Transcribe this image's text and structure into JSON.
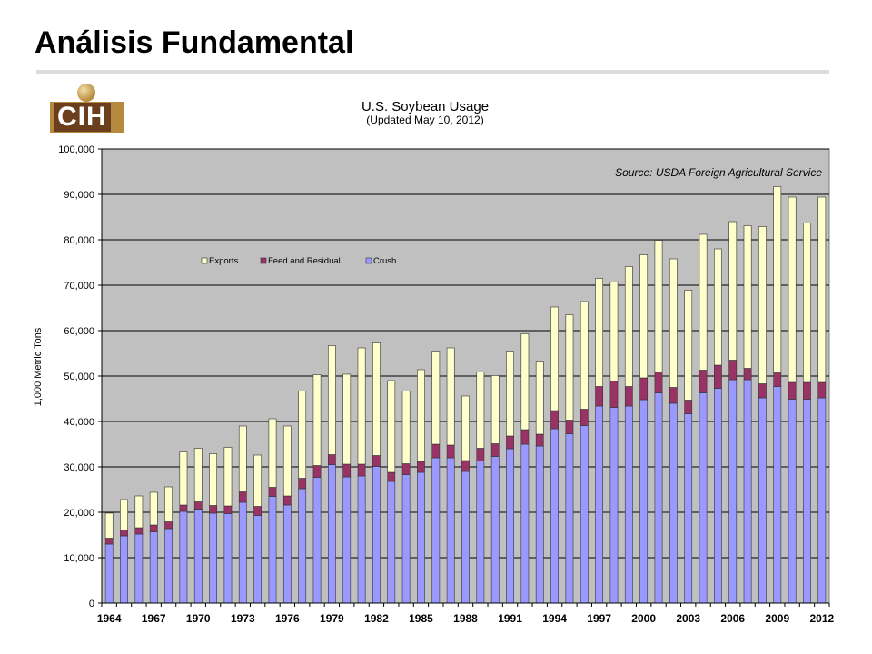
{
  "slide": {
    "title": "Análisis Fundamental",
    "logo_text": "CIH"
  },
  "colors": {
    "crush": "#9999ff",
    "feed": "#993366",
    "exports": "#ffffcc",
    "plot_bg": "#c0c0c0",
    "bar_stroke": "#333333"
  },
  "chart_data": {
    "type": "bar",
    "stacked": true,
    "title": "U.S. Soybean Usage",
    "subtitle": "(Updated May 10, 2012)",
    "annotation": "Source: USDA Foreign Agricultural Service",
    "xlabel": "",
    "ylabel": "1,000 Metric Tons",
    "ylim": [
      0,
      100000
    ],
    "yticks": [
      "0",
      "10,000",
      "20,000",
      "30,000",
      "40,000",
      "50,000",
      "60,000",
      "70,000",
      "80,000",
      "90,000",
      "100,000"
    ],
    "xtick_labels": [
      "1964",
      "1967",
      "1970",
      "1973",
      "1976",
      "1979",
      "1982",
      "1985",
      "1988",
      "1991",
      "1994",
      "1997",
      "2000",
      "2003",
      "2006",
      "2009",
      "2012"
    ],
    "grid": true,
    "legend_position": "top-left",
    "categories": [
      1964,
      1965,
      1966,
      1967,
      1968,
      1969,
      1970,
      1971,
      1972,
      1973,
      1974,
      1975,
      1976,
      1977,
      1978,
      1979,
      1980,
      1981,
      1982,
      1983,
      1984,
      1985,
      1986,
      1987,
      1988,
      1989,
      1990,
      1991,
      1992,
      1993,
      1994,
      1995,
      1996,
      1997,
      1998,
      1999,
      2000,
      2001,
      2002,
      2003,
      2004,
      2005,
      2006,
      2007,
      2008,
      2009,
      2010,
      2011,
      2012
    ],
    "series": [
      {
        "name": "Exports",
        "key": "exports",
        "values": [
          5500,
          6700,
          7000,
          7200,
          7700,
          11700,
          11800,
          11400,
          12900,
          14500,
          11300,
          15100,
          15400,
          19200,
          20000,
          24000,
          19800,
          25600,
          24800,
          20200,
          16000,
          20200,
          20500,
          21400,
          14200,
          16800,
          15000,
          18700,
          21100,
          16100,
          22800,
          23200,
          23700,
          23800,
          21800,
          26400,
          27100,
          29000,
          28300,
          24200,
          29900,
          25600,
          30500,
          31400,
          34600,
          41000,
          40800,
          35100,
          40800
        ]
      },
      {
        "name": "Feed and Residual",
        "key": "feed",
        "values": [
          1300,
          1300,
          1400,
          1500,
          1500,
          1400,
          1600,
          1700,
          1700,
          2300,
          2000,
          2000,
          2000,
          2300,
          2600,
          2200,
          2800,
          2600,
          2400,
          2000,
          2400,
          2400,
          3000,
          2800,
          2400,
          2800,
          2800,
          2800,
          3200,
          2600,
          4000,
          3000,
          3600,
          4300,
          5800,
          4300,
          4800,
          4600,
          3500,
          3000,
          5000,
          5100,
          4300,
          2500,
          3100,
          3000,
          3700,
          3700,
          3400
        ]
      },
      {
        "name": "Crush",
        "key": "crush",
        "values": [
          13000,
          14800,
          15200,
          15700,
          16400,
          20200,
          20700,
          19800,
          19700,
          22200,
          19300,
          23500,
          21600,
          25200,
          27700,
          30500,
          27800,
          28000,
          30100,
          26800,
          28300,
          28800,
          32000,
          32000,
          29000,
          31300,
          32300,
          34000,
          35000,
          34600,
          38400,
          37300,
          39100,
          43400,
          43100,
          43400,
          44800,
          46300,
          44000,
          41700,
          46300,
          47300,
          49200,
          49200,
          45200,
          47700,
          44900,
          44900,
          45200
        ]
      }
    ]
  }
}
